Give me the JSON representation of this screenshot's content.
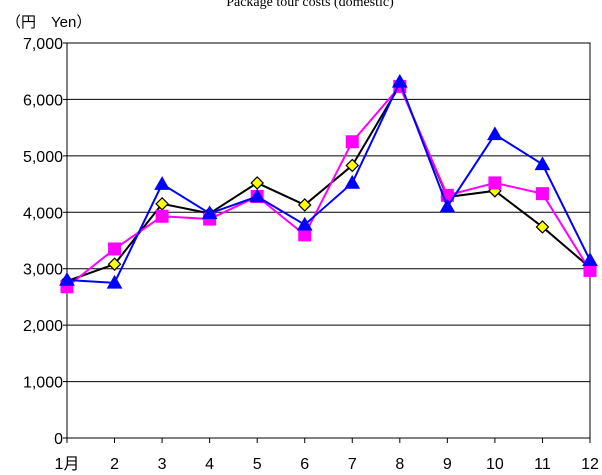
{
  "chart_data": {
    "type": "line",
    "title": "Package tour costs (domestic)",
    "y_unit_label": "（円　Yen）",
    "categories": [
      "1月",
      "2",
      "3",
      "4",
      "5",
      "6",
      "7",
      "8",
      "9",
      "10",
      "11",
      "12"
    ],
    "ylim": [
      0,
      7000
    ],
    "y_ticks": [
      0,
      1000,
      2000,
      3000,
      4000,
      5000,
      6000,
      7000
    ],
    "y_tick_labels": [
      "0",
      "1,000",
      "2,000",
      "3,000",
      "4,000",
      "5,000",
      "6,000",
      "7,000"
    ],
    "grid": true,
    "legend": "none",
    "series": [
      {
        "marker": "diamond",
        "line_color": "#000000",
        "marker_fill": "#ffff00",
        "marker_stroke": "#000000",
        "values": [
          2780,
          3080,
          4150,
          3980,
          4520,
          4130,
          4830,
          6250,
          4270,
          4380,
          3740,
          3020
        ]
      },
      {
        "marker": "square",
        "line_color": "#ff00ff",
        "marker_fill": "#ff00ff",
        "marker_stroke": "#ff00ff",
        "values": [
          2680,
          3350,
          3930,
          3880,
          4280,
          3600,
          5250,
          6230,
          4300,
          4520,
          4330,
          2970
        ]
      },
      {
        "marker": "triangle",
        "line_color": "#0000ff",
        "marker_fill": "#0000ff",
        "marker_stroke": "#0000ff",
        "values": [
          2800,
          2750,
          4500,
          3980,
          4280,
          3780,
          4520,
          6310,
          4100,
          5380,
          4850,
          3150
        ]
      }
    ]
  }
}
